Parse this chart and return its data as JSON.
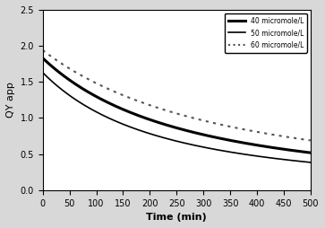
{
  "title": "",
  "xlabel": "Time (min)",
  "ylabel": "QY app",
  "xlim": [
    0,
    500
  ],
  "ylim": [
    0,
    2.5
  ],
  "xticks": [
    0,
    50,
    100,
    150,
    200,
    250,
    300,
    350,
    400,
    450,
    500
  ],
  "yticks": [
    0,
    0.5,
    1.0,
    1.5,
    2.0,
    2.5
  ],
  "series": [
    {
      "label": "40 micromole/L",
      "C0": 1.83,
      "k": 0.0024,
      "n": 1.6,
      "linestyle": "solid",
      "linewidth": 2.2,
      "color": "#000000"
    },
    {
      "label": "50 micromole/L",
      "C0": 1.63,
      "k": 0.0028,
      "n": 1.65,
      "linestyle": "solid",
      "linewidth": 1.2,
      "color": "#000000"
    },
    {
      "label": "60 micromole/L",
      "C0": 1.94,
      "k": 0.0019,
      "n": 1.55,
      "linestyle": "dotted",
      "linewidth": 1.5,
      "color": "#555555"
    }
  ],
  "legend_loc": "upper right",
  "background_color": "#d8d8d8",
  "plot_bg_color": "#ffffff"
}
